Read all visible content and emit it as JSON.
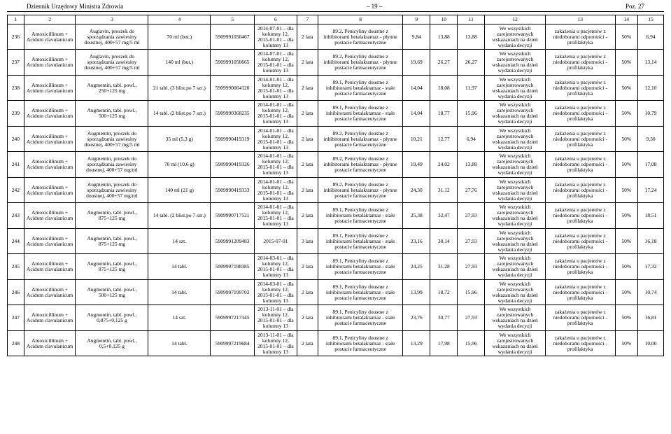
{
  "header": {
    "left": "Dziennik Urzędowy Ministra Zdrowia",
    "center": "– 19 –",
    "right": "Poz. 27"
  },
  "columns": [
    "1",
    "2",
    "3",
    "4",
    "5",
    "6",
    "7",
    "8",
    "9",
    "10",
    "11",
    "12",
    "13",
    "14",
    "15"
  ],
  "rows": [
    {
      "c1": "236",
      "c2": "Amoxicillinum + Acidum clavulanicum",
      "c3": "Auglavin, proszek do sporządzania zawiesiny doustnej, 400+57 mg/5 ml",
      "c4": "70 ml (but.)",
      "c5": "5909991050467",
      "c6": "2014-07-01 – dla kolumny 12, 2015-01-01 – dla kolumny 13",
      "c7": "2 lata",
      "c8": "89.2, Penicyliny doustne z inhibitorami betalaktamaz - płynne postacie farmaceutyczne",
      "c9": "9,84",
      "c10": "13,88",
      "c11": "13,88",
      "c12": "We wszystkich zarejestrowanych wskazaniach na dzień wydania decyzji",
      "c13": "zakażenia u pacjentów z niedoborami odporności - profilaktyka",
      "c14": "50%",
      "c15": "6,94"
    },
    {
      "c1": "237",
      "c2": "Amoxicillinum + Acidum clavulanicum",
      "c3": "Auglavin, proszek do sporządzania zawiesiny doustnej, 400+57 mg/5 ml",
      "c4": "140 ml (but.)",
      "c5": "5909991050665",
      "c6": "2014-07-01 – dla kolumny 12, 2015-01-01 – dla kolumny 13",
      "c7": "2 lata",
      "c8": "89.2, Penicyliny doustne z inhibitorami betalaktamaz - płynne postacie farmaceutyczne",
      "c9": "19,69",
      "c10": "26,27",
      "c11": "26,27",
      "c12": "We wszystkich zarejestrowanych wskazaniach na dzień wydania decyzji",
      "c13": "zakażenia u pacjentów z niedoborami odporności - profilaktyka",
      "c14": "50%",
      "c15": "13,14"
    },
    {
      "c1": "238",
      "c2": "Amoxicillinum + Acidum clavulanicum",
      "c3": "Augmentin, tabl. powl., 250+125 mg",
      "c4": "21 tabl. (3 blist.po 7 szt.)",
      "c5": "5909990064120",
      "c6": "2014-01-01 – dla kolumny 12, 2015-01-01 – dla kolumny 13",
      "c7": "2 lata",
      "c8": "89.1, Penicyliny doustne z inhibitorami betalaktamaz - stałe postacie farmaceutyczne",
      "c9": "14,04",
      "c10": "18,08",
      "c11": "11,97",
      "c12": "We wszystkich zarejestrowanych wskazaniach na dzień wydania decyzji",
      "c13": "zakażenia u pacjentów z niedoborami odporności - profilaktyka",
      "c14": "50%",
      "c15": "12,10"
    },
    {
      "c1": "239",
      "c2": "Amoxicillinum + Acidum clavulanicum",
      "c3": "Augmentin, tabl. powl., 500+125 mg",
      "c4": "14 tabl. (2 blist.po 7 szt.)",
      "c5": "5909990368235",
      "c6": "2014-01-01 – dla kolumny 12, 2015-01-01 – dla kolumny 13",
      "c7": "2 lata",
      "c8": "89.1, Penicyliny doustne z inhibitorami betalaktamaz - stałe postacie farmaceutyczne",
      "c9": "14,04",
      "c10": "18,77",
      "c11": "15,96",
      "c12": "We wszystkich zarejestrowanych wskazaniach na dzień wydania decyzji",
      "c13": "zakażenia u pacjentów z niedoborami odporności - profilaktyka",
      "c14": "50%",
      "c15": "10,79"
    },
    {
      "c1": "240",
      "c2": "Amoxicillinum + Acidum clavulanicum",
      "c3": "Augmentin, proszek do sporządzania zawiesiny doustnej, 400+57 mg/5 ml",
      "c4": "35 ml (5,3 g)",
      "c5": "5909990419319",
      "c6": "2014-01-01 – dla kolumny 12, 2015-01-01 – dla kolumny 13",
      "c7": "2 lata",
      "c8": "89.2, Penicyliny doustne z inhibitorami betalaktamaz - płynne postacie farmaceutyczne",
      "c9": "10,21",
      "c10": "12,77",
      "c11": "6,94",
      "c12": "We wszystkich zarejestrowanych wskazaniach na dzień wydania decyzji",
      "c13": "zakażenia u pacjentów z niedoborami odporności - profilaktyka",
      "c14": "50%",
      "c15": "9,30"
    },
    {
      "c1": "241",
      "c2": "Amoxicillinum + Acidum clavulanicum",
      "c3": "Augmentin, proszek do sporządzania zawiesiny doustnej, 400+57 mg/ml",
      "c4": "70 ml (10,6 g)",
      "c5": "5909990419326",
      "c6": "2014-01-01 – dla kolumny 12, 2015-01-01 – dla kolumny 13",
      "c7": "2 lata",
      "c8": "89.2, Penicyliny doustne z inhibitorami betalaktamaz - płynne postacie farmaceutyczne",
      "c9": "19,49",
      "c10": "24,02",
      "c11": "13,88",
      "c12": "We wszystkich zarejestrowanych wskazaniach na dzień wydania decyzji",
      "c13": "zakażenia u pacjentów z niedoborami odporności - profilaktyka",
      "c14": "50%",
      "c15": "17,08"
    },
    {
      "c1": "242",
      "c2": "Amoxicillinum + Acidum clavulanicum",
      "c3": "Augmentin, proszek do sporządzania zawiesiny doustnej, 400+57 mg/ml",
      "c4": "140 ml (21 g)",
      "c5": "5909990419333",
      "c6": "2014-01-01 – dla kolumny 12, 2015-01-01 – dla kolumny 13",
      "c7": "2 lata",
      "c8": "89.2, Penicyliny doustne z inhibitorami betalaktamaz - płynne postacie farmaceutyczne",
      "c9": "24,30",
      "c10": "31,12",
      "c11": "27,76",
      "c12": "We wszystkich zarejestrowanych wskazaniach na dzień wydania decyzji",
      "c13": "zakażenia u pacjentów z niedoborami odporności - profilaktyka",
      "c14": "50%",
      "c15": "17,24"
    },
    {
      "c1": "243",
      "c2": "Amoxicillinum + Acidum clavulanicum",
      "c3": "Augmentin, tabl. powl., 875+125 mg",
      "c4": "14 tabl. (2 blist.po 7 szt.)",
      "c5": "5909990717521",
      "c6": "2014-01-01 – dla kolumny 12, 2015-01-01 – dla kolumny 13",
      "c7": "2 lata",
      "c8": "89.1, Penicyliny doustne z inhibitorami betalaktamaz - stałe postacie farmaceutyczne",
      "c9": "25,38",
      "c10": "32,47",
      "c11": "27,93",
      "c12": "We wszystkich zarejestrowanych wskazaniach na dzień wydania decyzji",
      "c13": "zakażenia u pacjentów z niedoborami odporności - profilaktyka",
      "c14": "50%",
      "c15": "18,51"
    },
    {
      "c1": "244",
      "c2": "Amoxicillinum + Acidum clavulanicum",
      "c3": "Augmentin, tabl. powl., 875+125 mg",
      "c4": "14 szt.",
      "c5": "5909991209483",
      "c6": "2015-07-01",
      "c7": "3 lata",
      "c8": "89.1, Penicyliny doustne z inhibitorami betalaktamaz - stałe postacie farmaceutyczne",
      "c9": "23,16",
      "c10": "30,14",
      "c11": "27,93",
      "c12": "We wszystkich zarejestrowanych wskazaniach na dzień wydania decyzji",
      "c13": "zakażenia u pacjentów z niedoborami odporności - profilaktyka",
      "c14": "50%",
      "c15": "16,18"
    },
    {
      "c1": "245",
      "c2": "Amoxicillinum + Acidum clavulanicum",
      "c3": "Augmentin, tabl. powl., 875+125 mg",
      "c4": "14 tabl.",
      "c5": "5909997198385",
      "c6": "2014-03-01 – dla kolumny 12, 2015-01-01 – dla kolumny 13",
      "c7": "2 lata",
      "c8": "89.1, Penicyliny doustne z inhibitorami betalaktamaz - stałe postacie farmaceutyczne",
      "c9": "24,25",
      "c10": "31,28",
      "c11": "27,93",
      "c12": "We wszystkich zarejestrowanych wskazaniach na dzień wydania decyzji",
      "c13": "zakażenia u pacjentów z niedoborami odporności - profilaktyka",
      "c14": "50%",
      "c15": "17,32"
    },
    {
      "c1": "246",
      "c2": "Amoxicillinum + Acidum clavulanicum",
      "c3": "Augmentin, tabl. powl., 500+125 mg",
      "c4": "14 tabl.",
      "c5": "5909997199702",
      "c6": "2014-03-01 – dla kolumny 12, 2015-01-01 – dla kolumny 13",
      "c7": "2 lata",
      "c8": "89.1, Penicyliny doustne z inhibitorami betalaktamaz - stałe postacie farmaceutyczne",
      "c9": "13,99",
      "c10": "18,72",
      "c11": "15,96",
      "c12": "We wszystkich zarejestrowanych wskazaniach na dzień wydania decyzji",
      "c13": "zakażenia u pacjentów z niedoborami odporności - profilaktyka",
      "c14": "50%",
      "c15": "10,74"
    },
    {
      "c1": "247",
      "c2": "Amoxicillinum + Acidum clavulanicum",
      "c3": "Augmentin, tabl. powl., 0,875+0,125 g",
      "c4": "14 szt.",
      "c5": "5909997217345",
      "c6": "2013-11-01 – dla kolumny 12, 2015-01-01 – dla kolumny 13",
      "c7": "2 lata",
      "c8": "89.1, Penicyliny doustne z inhibitorami betalaktamaz - stałe postacie farmaceutyczne",
      "c9": "23,76",
      "c10": "30,77",
      "c11": "27,93",
      "c12": "We wszystkich zarejestrowanych wskazaniach na dzień wydania decyzji",
      "c13": "zakażenia u pacjentów z niedoborami odporności - profilaktyka",
      "c14": "50%",
      "c15": "16,81"
    },
    {
      "c1": "248",
      "c2": "Amoxicillinum + Acidum clavulanicum",
      "c3": "Augmentin, tabl. powl., 0,5+0,125 g",
      "c4": "14 tabl.",
      "c5": "5909997219684",
      "c6": "2013-11-01 – dla kolumny 12, 2015-01-01 – dla kolumny 13",
      "c7": "2 lata",
      "c8": "89.1, Penicyliny doustne z inhibitorami betalaktamaz - stałe postacie farmaceutyczne",
      "c9": "13,29",
      "c10": "17,98",
      "c11": "15,96",
      "c12": "We wszystkich zarejestrowanych wskazaniach na dzień wydania decyzji",
      "c13": "zakażenia u pacjentów z niedoborami odporności - profilaktyka",
      "c14": "50%",
      "c15": "10,00"
    }
  ]
}
